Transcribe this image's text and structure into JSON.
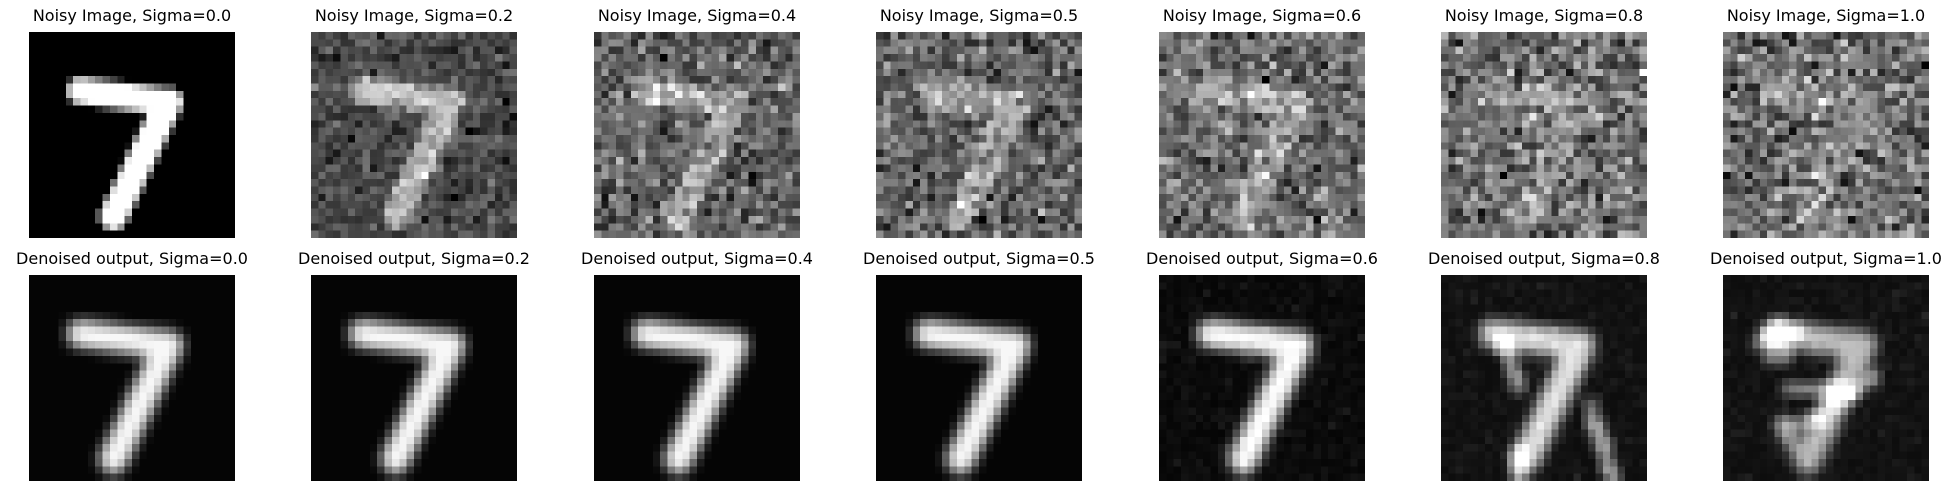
{
  "figure": {
    "rows": [
      {
        "kind": "noisy",
        "panels": [
          {
            "title": "Noisy Image, Sigma=0.0",
            "sigma": 0.0
          },
          {
            "title": "Noisy Image, Sigma=0.2",
            "sigma": 0.2
          },
          {
            "title": "Noisy Image, Sigma=0.4",
            "sigma": 0.4
          },
          {
            "title": "Noisy Image, Sigma=0.5",
            "sigma": 0.5
          },
          {
            "title": "Noisy Image, Sigma=0.6",
            "sigma": 0.6
          },
          {
            "title": "Noisy Image, Sigma=0.8",
            "sigma": 0.8
          },
          {
            "title": "Noisy Image, Sigma=1.0",
            "sigma": 1.0
          }
        ]
      },
      {
        "kind": "denoised",
        "panels": [
          {
            "title": "Denoised output, Sigma=0.0",
            "sigma": 0.0
          },
          {
            "title": "Denoised output, Sigma=0.2",
            "sigma": 0.2
          },
          {
            "title": "Denoised output, Sigma=0.4",
            "sigma": 0.4
          },
          {
            "title": "Denoised output, Sigma=0.5",
            "sigma": 0.5
          },
          {
            "title": "Denoised output, Sigma=0.6",
            "sigma": 0.6
          },
          {
            "title": "Denoised output, Sigma=0.8",
            "sigma": 0.8
          },
          {
            "title": "Denoised output, Sigma=1.0",
            "sigma": 1.0
          }
        ]
      }
    ]
  }
}
